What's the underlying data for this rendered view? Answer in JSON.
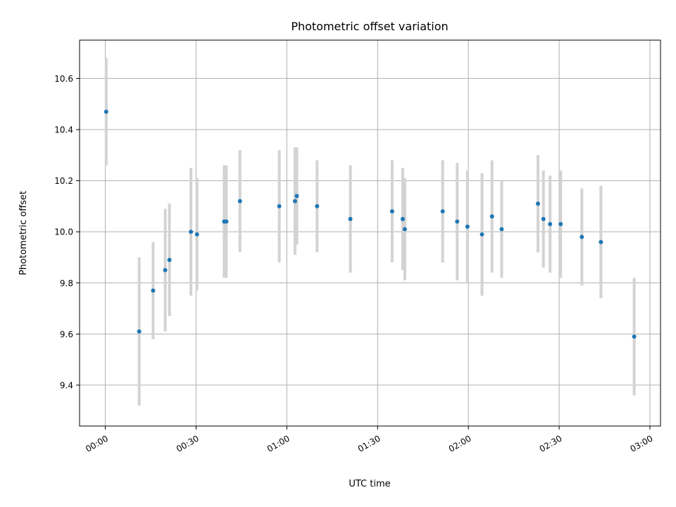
{
  "chart_data": {
    "type": "scatter",
    "title": "Photometric offset variation",
    "xlabel": "UTC time",
    "ylabel": "Photometric offset",
    "x_tick_labels": [
      "00:00",
      "00:30",
      "01:00",
      "01:30",
      "02:00",
      "02:30",
      "03:00"
    ],
    "y_tick_labels": [
      "9.4",
      "9.6",
      "9.8",
      "10.0",
      "10.2",
      "10.4",
      "10.6"
    ],
    "x_tick_minutes": [
      0,
      30,
      60,
      90,
      120,
      150,
      180
    ],
    "y_tick_values": [
      9.4,
      9.6,
      9.8,
      10.0,
      10.2,
      10.4,
      10.6
    ],
    "xlim_minutes": [
      -8.5,
      183.5
    ],
    "ylim": [
      9.24,
      10.75
    ],
    "grid": true,
    "marker_color": "#1f77b4",
    "errorbar_color": "#d3d3d3",
    "series": [
      {
        "points": [
          {
            "t": 0.3,
            "y": 10.47,
            "err": 0.21
          },
          {
            "t": 11.2,
            "y": 9.61,
            "err": 0.29
          },
          {
            "t": 15.8,
            "y": 9.77,
            "err": 0.19
          },
          {
            "t": 19.8,
            "y": 9.85,
            "err": 0.24
          },
          {
            "t": 21.2,
            "y": 9.89,
            "err": 0.22
          },
          {
            "t": 28.3,
            "y": 10.0,
            "err": 0.25
          },
          {
            "t": 30.3,
            "y": 9.99,
            "err": 0.22
          },
          {
            "t": 39.3,
            "y": 10.04,
            "err": 0.22
          },
          {
            "t": 40.0,
            "y": 10.04,
            "err": 0.22
          },
          {
            "t": 44.5,
            "y": 10.12,
            "err": 0.2
          },
          {
            "t": 57.5,
            "y": 10.1,
            "err": 0.22
          },
          {
            "t": 62.7,
            "y": 10.12,
            "err": 0.21
          },
          {
            "t": 63.3,
            "y": 10.14,
            "err": 0.19
          },
          {
            "t": 70.0,
            "y": 10.1,
            "err": 0.18
          },
          {
            "t": 81.0,
            "y": 10.05,
            "err": 0.21
          },
          {
            "t": 94.8,
            "y": 10.08,
            "err": 0.2
          },
          {
            "t": 98.3,
            "y": 10.05,
            "err": 0.2
          },
          {
            "t": 99.0,
            "y": 10.01,
            "err": 0.2
          },
          {
            "t": 111.5,
            "y": 10.08,
            "err": 0.2
          },
          {
            "t": 116.3,
            "y": 10.04,
            "err": 0.23
          },
          {
            "t": 119.7,
            "y": 10.02,
            "err": 0.22
          },
          {
            "t": 124.5,
            "y": 9.99,
            "err": 0.24
          },
          {
            "t": 127.8,
            "y": 10.06,
            "err": 0.22
          },
          {
            "t": 131.0,
            "y": 10.01,
            "err": 0.19
          },
          {
            "t": 143.0,
            "y": 10.11,
            "err": 0.19
          },
          {
            "t": 144.8,
            "y": 10.05,
            "err": 0.19
          },
          {
            "t": 147.0,
            "y": 10.03,
            "err": 0.19
          },
          {
            "t": 150.5,
            "y": 10.03,
            "err": 0.21
          },
          {
            "t": 157.5,
            "y": 9.98,
            "err": 0.19
          },
          {
            "t": 163.8,
            "y": 9.96,
            "err": 0.22
          },
          {
            "t": 174.8,
            "y": 9.59,
            "err": 0.23
          }
        ]
      }
    ]
  }
}
